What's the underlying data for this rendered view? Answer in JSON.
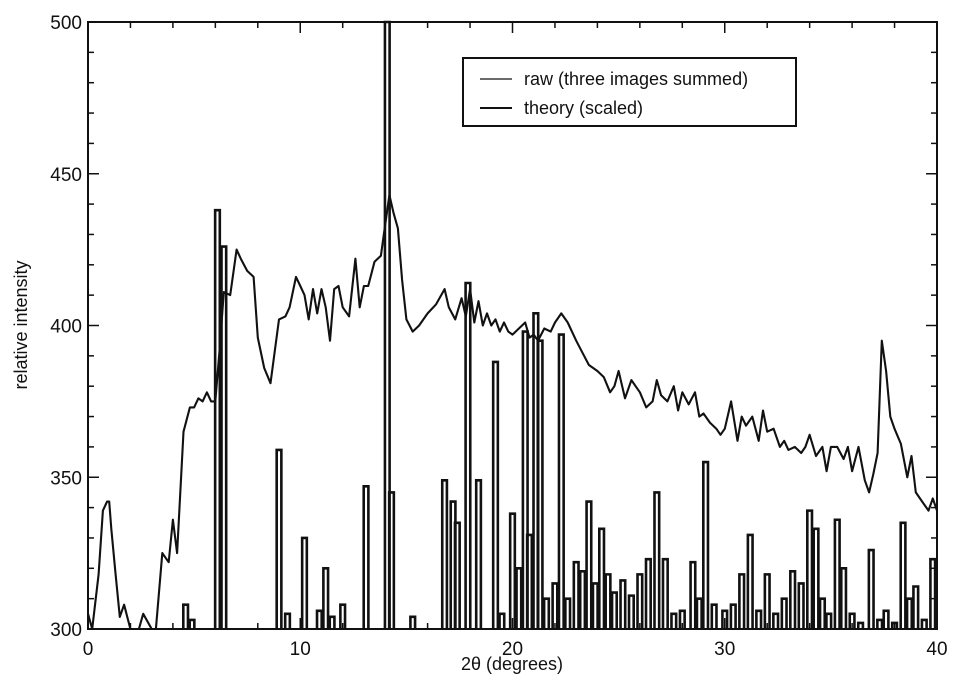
{
  "chart_data": {
    "type": "line",
    "title": "",
    "xlabel": "2θ (degrees)",
    "ylabel": "relative intensity",
    "xlim": [
      0,
      40
    ],
    "ylim": [
      300,
      500
    ],
    "x_ticks": [
      0,
      10,
      20,
      30,
      40
    ],
    "y_ticks": [
      300,
      350,
      400,
      450,
      500
    ],
    "x_tick_labels": [
      "0",
      "10",
      "20",
      "30",
      "40"
    ],
    "y_tick_labels": [
      "300",
      "350",
      "400",
      "450",
      "500"
    ],
    "grid": false,
    "legend_position": "top-right",
    "series": [
      {
        "name": "raw (three images summed)",
        "color": "#111111",
        "style": "line",
        "x": [
          0,
          0.2,
          0.5,
          0.7,
          0.9,
          1.0,
          1.1,
          1.3,
          1.5,
          1.7,
          2.0,
          2.4,
          2.6,
          3.0,
          3.2,
          3.5,
          3.8,
          4.0,
          4.2,
          4.5,
          4.8,
          5.0,
          5.2,
          5.4,
          5.6,
          5.8,
          6.0,
          6.2,
          6.4,
          6.7,
          7.0,
          7.2,
          7.5,
          7.8,
          8.0,
          8.3,
          8.6,
          9.0,
          9.3,
          9.5,
          9.8,
          10.0,
          10.2,
          10.4,
          10.6,
          10.8,
          11.0,
          11.2,
          11.4,
          11.6,
          11.8,
          12.0,
          12.3,
          12.6,
          12.8,
          13.0,
          13.2,
          13.5,
          13.8,
          14.0,
          14.2,
          14.4,
          14.6,
          14.8,
          15.0,
          15.3,
          15.6,
          16.0,
          16.4,
          16.8,
          17.0,
          17.3,
          17.6,
          17.8,
          18.0,
          18.2,
          18.4,
          18.6,
          18.8,
          19.0,
          19.2,
          19.4,
          19.6,
          19.8,
          20.0,
          20.3,
          20.6,
          20.8,
          21.0,
          21.2,
          21.5,
          21.8,
          22.0,
          22.3,
          22.6,
          23.0,
          23.3,
          23.6,
          24.0,
          24.3,
          24.6,
          24.8,
          25.0,
          25.3,
          25.6,
          25.8,
          26.0,
          26.3,
          26.6,
          26.8,
          27.0,
          27.3,
          27.6,
          27.8,
          28.0,
          28.3,
          28.6,
          28.8,
          29.0,
          29.3,
          29.6,
          29.8,
          30.0,
          30.3,
          30.6,
          30.8,
          31.0,
          31.3,
          31.6,
          31.8,
          32.0,
          32.3,
          32.6,
          32.8,
          33.0,
          33.3,
          33.6,
          33.8,
          34.0,
          34.3,
          34.6,
          34.8,
          35.0,
          35.3,
          35.6,
          35.8,
          36.0,
          36.3,
          36.6,
          36.8,
          37.0,
          37.2,
          37.4,
          37.6,
          37.8,
          38.0,
          38.3,
          38.6,
          38.8,
          39.0,
          39.3,
          39.6,
          39.8,
          40.0
        ],
        "y": [
          305,
          300,
          318,
          339,
          342,
          342,
          333,
          318,
          304,
          308,
          300,
          300,
          305,
          300,
          300,
          325,
          322,
          336,
          325,
          365,
          373,
          373,
          376,
          375,
          378,
          375,
          375,
          392,
          411,
          410,
          425,
          422,
          418,
          416,
          396,
          386,
          381,
          402,
          403,
          406,
          416,
          413,
          410,
          402,
          412,
          404,
          412,
          406,
          395,
          412,
          413,
          406,
          403,
          422,
          406,
          413,
          413,
          421,
          423,
          433,
          443,
          437,
          432,
          415,
          402,
          398,
          400,
          404,
          407,
          412,
          406,
          402,
          409,
          403,
          412,
          401,
          408,
          400,
          404,
          400,
          402,
          398,
          401,
          398,
          397,
          399,
          401,
          396,
          397,
          395,
          399,
          398,
          401,
          404,
          401,
          395,
          391,
          387,
          385,
          383,
          378,
          380,
          385,
          376,
          382,
          380,
          378,
          373,
          375,
          382,
          377,
          375,
          380,
          372,
          378,
          374,
          378,
          370,
          371,
          368,
          366,
          364,
          366,
          375,
          362,
          370,
          367,
          370,
          362,
          372,
          365,
          366,
          360,
          362,
          359,
          360,
          358,
          360,
          364,
          357,
          360,
          352,
          360,
          360,
          356,
          360,
          352,
          360,
          349,
          345,
          351,
          358,
          395,
          385,
          370,
          366,
          361,
          350,
          357,
          345,
          342,
          339,
          343,
          339
        ]
      },
      {
        "name": "theory (scaled)",
        "color": "#111111",
        "style": "step",
        "peaks": [
          {
            "x": 4.6,
            "y": 308
          },
          {
            "x": 4.9,
            "y": 303
          },
          {
            "x": 6.1,
            "y": 438
          },
          {
            "x": 6.4,
            "y": 426
          },
          {
            "x": 9.0,
            "y": 359
          },
          {
            "x": 9.4,
            "y": 305
          },
          {
            "x": 10.2,
            "y": 330
          },
          {
            "x": 10.9,
            "y": 306
          },
          {
            "x": 11.2,
            "y": 320
          },
          {
            "x": 11.5,
            "y": 304
          },
          {
            "x": 12.0,
            "y": 308
          },
          {
            "x": 13.1,
            "y": 347
          },
          {
            "x": 14.1,
            "y": 500
          },
          {
            "x": 14.3,
            "y": 345
          },
          {
            "x": 15.3,
            "y": 304
          },
          {
            "x": 16.8,
            "y": 349
          },
          {
            "x": 17.2,
            "y": 342
          },
          {
            "x": 17.4,
            "y": 335
          },
          {
            "x": 17.9,
            "y": 414
          },
          {
            "x": 18.4,
            "y": 349
          },
          {
            "x": 19.2,
            "y": 388
          },
          {
            "x": 19.5,
            "y": 305
          },
          {
            "x": 20.0,
            "y": 338
          },
          {
            "x": 20.3,
            "y": 320
          },
          {
            "x": 20.6,
            "y": 398
          },
          {
            "x": 20.8,
            "y": 331
          },
          {
            "x": 21.1,
            "y": 404
          },
          {
            "x": 21.3,
            "y": 395
          },
          {
            "x": 21.6,
            "y": 310
          },
          {
            "x": 22.0,
            "y": 315
          },
          {
            "x": 22.3,
            "y": 397
          },
          {
            "x": 22.6,
            "y": 310
          },
          {
            "x": 23.0,
            "y": 322
          },
          {
            "x": 23.3,
            "y": 319
          },
          {
            "x": 23.6,
            "y": 342
          },
          {
            "x": 23.9,
            "y": 315
          },
          {
            "x": 24.2,
            "y": 333
          },
          {
            "x": 24.5,
            "y": 318
          },
          {
            "x": 24.8,
            "y": 312
          },
          {
            "x": 25.2,
            "y": 316
          },
          {
            "x": 25.6,
            "y": 311
          },
          {
            "x": 26.0,
            "y": 318
          },
          {
            "x": 26.4,
            "y": 323
          },
          {
            "x": 26.8,
            "y": 345
          },
          {
            "x": 27.2,
            "y": 323
          },
          {
            "x": 27.6,
            "y": 305
          },
          {
            "x": 28.0,
            "y": 306
          },
          {
            "x": 28.5,
            "y": 322
          },
          {
            "x": 28.8,
            "y": 310
          },
          {
            "x": 29.1,
            "y": 355
          },
          {
            "x": 29.5,
            "y": 308
          },
          {
            "x": 30.0,
            "y": 306
          },
          {
            "x": 30.4,
            "y": 308
          },
          {
            "x": 30.8,
            "y": 318
          },
          {
            "x": 31.2,
            "y": 331
          },
          {
            "x": 31.6,
            "y": 306
          },
          {
            "x": 32.0,
            "y": 318
          },
          {
            "x": 32.4,
            "y": 305
          },
          {
            "x": 32.8,
            "y": 310
          },
          {
            "x": 33.2,
            "y": 319
          },
          {
            "x": 33.6,
            "y": 315
          },
          {
            "x": 34.0,
            "y": 339
          },
          {
            "x": 34.3,
            "y": 333
          },
          {
            "x": 34.6,
            "y": 310
          },
          {
            "x": 34.9,
            "y": 305
          },
          {
            "x": 35.3,
            "y": 336
          },
          {
            "x": 35.6,
            "y": 320
          },
          {
            "x": 36.0,
            "y": 305
          },
          {
            "x": 36.4,
            "y": 302
          },
          {
            "x": 36.9,
            "y": 326
          },
          {
            "x": 37.3,
            "y": 303
          },
          {
            "x": 37.6,
            "y": 306
          },
          {
            "x": 38.0,
            "y": 302
          },
          {
            "x": 38.4,
            "y": 335
          },
          {
            "x": 38.7,
            "y": 310
          },
          {
            "x": 39.0,
            "y": 314
          },
          {
            "x": 39.4,
            "y": 303
          },
          {
            "x": 39.8,
            "y": 323
          }
        ]
      }
    ]
  }
}
